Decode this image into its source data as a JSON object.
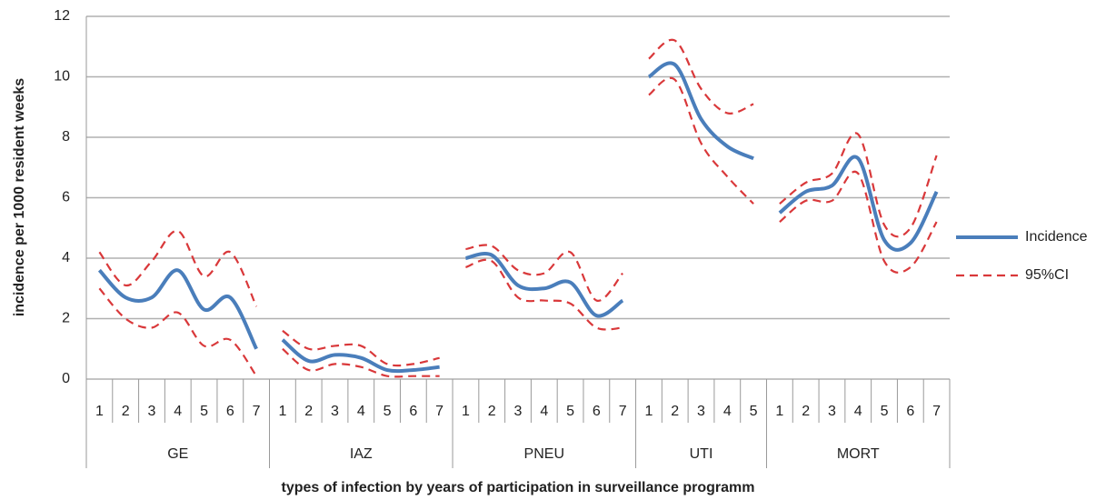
{
  "chart_data": {
    "type": "line",
    "y_label": "incidence per 1000 resident weeks",
    "x_label": "types of infection by years of participation in surveillance programm",
    "groups": [
      {
        "name": "GE",
        "categories": [
          "1",
          "2",
          "3",
          "4",
          "5",
          "6",
          "7"
        ]
      },
      {
        "name": "IAZ",
        "categories": [
          "1",
          "2",
          "3",
          "4",
          "5",
          "6",
          "7"
        ]
      },
      {
        "name": "PNEU",
        "categories": [
          "1",
          "2",
          "3",
          "4",
          "5",
          "6",
          "7"
        ]
      },
      {
        "name": "UTI",
        "categories": [
          "1",
          "2",
          "3",
          "4",
          "5"
        ]
      },
      {
        "name": "MORT",
        "categories": [
          "1",
          "2",
          "3",
          "4",
          "5",
          "6",
          "7"
        ]
      }
    ],
    "series": [
      {
        "name": "Incidence",
        "color": "#4a7ebb",
        "values": [
          3.6,
          2.7,
          2.7,
          3.6,
          2.3,
          2.7,
          1.0,
          1.3,
          0.6,
          0.8,
          0.7,
          0.3,
          0.3,
          0.4,
          4.0,
          4.1,
          3.1,
          3.0,
          3.2,
          2.1,
          2.6,
          10.0,
          10.4,
          8.6,
          7.7,
          7.3,
          5.5,
          6.2,
          6.4,
          7.3,
          4.6,
          4.5,
          6.2
        ]
      },
      {
        "name": "95%CI",
        "color": "#d9383a",
        "upper": [
          4.2,
          3.1,
          3.9,
          4.9,
          3.4,
          4.2,
          2.4,
          1.6,
          1.0,
          1.1,
          1.1,
          0.5,
          0.5,
          0.7,
          4.3,
          4.4,
          3.6,
          3.5,
          4.2,
          2.6,
          3.5,
          10.6,
          11.2,
          9.6,
          8.8,
          9.1,
          5.8,
          6.5,
          6.8,
          8.1,
          5.1,
          5.0,
          7.4
        ],
        "lower": [
          3.0,
          2.0,
          1.7,
          2.2,
          1.1,
          1.3,
          0.1,
          1.0,
          0.3,
          0.5,
          0.4,
          0.1,
          0.1,
          0.1,
          3.7,
          3.9,
          2.7,
          2.6,
          2.5,
          1.7,
          1.7,
          9.4,
          9.9,
          7.8,
          6.7,
          5.8,
          5.2,
          5.9,
          5.9,
          6.8,
          3.9,
          3.7,
          5.2
        ]
      }
    ],
    "ylim": [
      0,
      12
    ],
    "yticks": [
      0,
      2,
      4,
      6,
      8,
      10,
      12
    ],
    "grid": true
  }
}
